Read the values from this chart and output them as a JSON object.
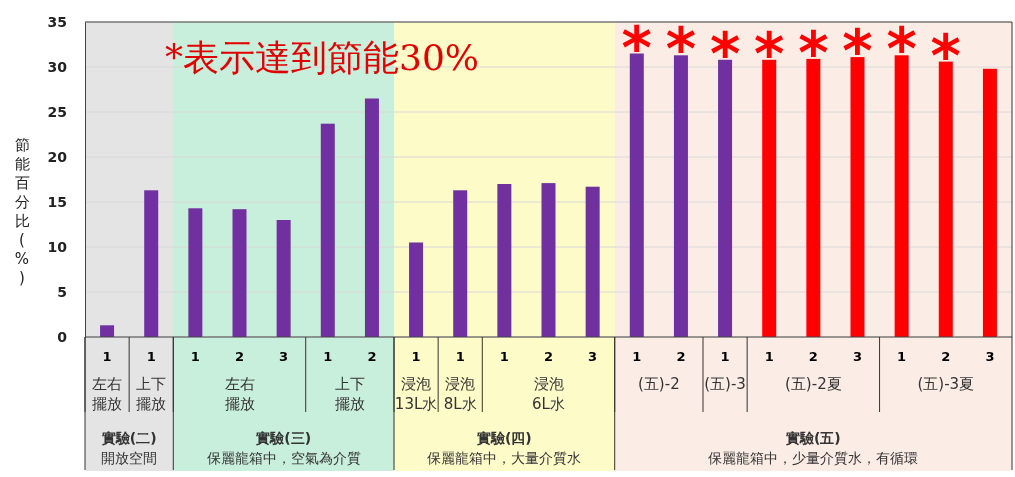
{
  "chart_data": {
    "type": "bar",
    "categories": [
      "1",
      "1",
      "1",
      "2",
      "3",
      "1",
      "2",
      "1",
      "1",
      "1",
      "2",
      "3",
      "1",
      "2",
      "1",
      "1",
      "2",
      "3",
      "1",
      "2",
      "3"
    ],
    "values": [
      1.3,
      16.3,
      14.3,
      14.2,
      13.0,
      23.7,
      26.5,
      10.5,
      16.3,
      17.0,
      17.1,
      16.7,
      31.5,
      31.3,
      30.8,
      30.8,
      30.9,
      31.1,
      31.3,
      30.6,
      29.8
    ],
    "colors": [
      "#7030a0",
      "#7030a0",
      "#7030a0",
      "#7030a0",
      "#7030a0",
      "#7030a0",
      "#7030a0",
      "#7030a0",
      "#7030a0",
      "#7030a0",
      "#7030a0",
      "#7030a0",
      "#7030a0",
      "#7030a0",
      "#7030a0",
      "#ff0000",
      "#ff0000",
      "#ff0000",
      "#ff0000",
      "#ff0000",
      "#ff0000"
    ],
    "value_labels": [
      null,
      null,
      null,
      null,
      null,
      null,
      null,
      null,
      null,
      null,
      null,
      null,
      "*",
      "*",
      "*",
      "*",
      "*",
      "*",
      "*",
      "*",
      null
    ],
    "ylabel": "節能百分比(%)",
    "ylim": [
      0,
      35
    ],
    "yticks": [
      0,
      5,
      10,
      15,
      20,
      25,
      30,
      35
    ],
    "grid": "y",
    "annotations": [
      "*表示達到節能30%",
      "左右擺放",
      "上下擺放",
      "左右擺放",
      "上下擺放",
      "浸泡13L水",
      "浸泡8L水",
      "浸泡6L水",
      "(五)-2",
      "(五)-3",
      "(五)-2夏",
      "(五)-3夏",
      "實驗(二)",
      "開放空間",
      "實驗(三)",
      "保麗龍箱中，空氣為介質",
      "實驗(四)",
      "保麗龍箱中，大量介質水",
      "實驗(五)",
      "保麗龍箱中，少量介質水，有循環"
    ]
  }
}
